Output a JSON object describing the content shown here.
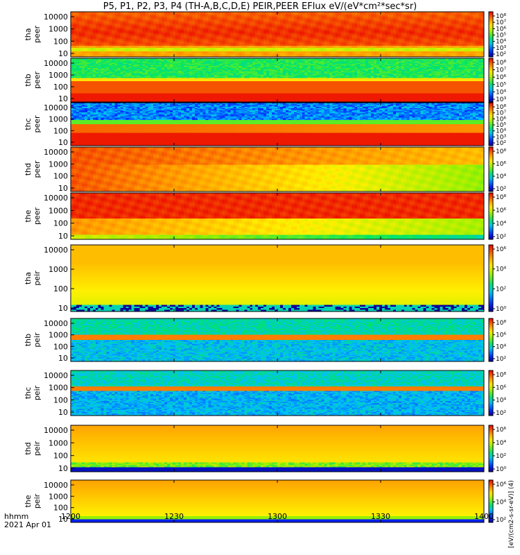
{
  "title": "P5, P1, P2, P3, P4 (TH-A,B,C,D,E) PEIR,PEER EFlux eV/(eV*cm²*sec*sr)",
  "time_axis": {
    "label": "hhmm",
    "date": "2021 Apr 01",
    "ticks": [
      "1200",
      "1230",
      "1300",
      "1330",
      "1400"
    ]
  },
  "colorbar_unit": "[eV/(cm2-s-sr-eV)] (4)",
  "chart_data": {
    "type": "heatmap",
    "title": "P5, P1, P2, P3, P4 (TH-A,B,C,D,E) PEIR,PEER EFlux eV/(eV*cm²*sec*sr)",
    "xlabel": "hhmm",
    "x_range": [
      "2021 Apr 01 12:00",
      "2021 Apr 01 14:00"
    ],
    "x_ticks": [
      "1200",
      "1230",
      "1300",
      "1330",
      "1400"
    ],
    "y_scale": "log",
    "y_ticks": [
      "10",
      "100",
      "1000",
      "10000"
    ],
    "colorscale": "rainbow",
    "panels": [
      {
        "ylabel": [
          "tha",
          "peer"
        ],
        "cb_ticks": [
          "10²",
          "10³",
          "10⁴",
          "10⁵",
          "10⁶",
          "10⁷",
          "10⁸"
        ],
        "cb_range": [
          2,
          8
        ]
      },
      {
        "ylabel": [
          "thb",
          "peer"
        ],
        "cb_ticks": [
          "10³",
          "10⁴",
          "10⁵",
          "10⁶",
          "10⁷",
          "10⁸"
        ],
        "cb_range": [
          3,
          8
        ]
      },
      {
        "ylabel": [
          "thc",
          "peer"
        ],
        "cb_ticks": [
          "10²",
          "10³",
          "10⁴",
          "10⁵",
          "10⁶",
          "10⁷",
          "10⁸"
        ],
        "cb_range": [
          2,
          8
        ]
      },
      {
        "ylabel": [
          "thd",
          "peer"
        ],
        "cb_ticks": [
          "10²",
          "10⁴",
          "10⁶",
          "10⁸"
        ],
        "cb_range": [
          2,
          8
        ]
      },
      {
        "ylabel": [
          "the",
          "peer"
        ],
        "cb_ticks": [
          "10²",
          "10⁴",
          "10⁶",
          "10⁸"
        ],
        "cb_range": [
          2,
          8
        ]
      },
      {
        "ylabel": [
          "tha",
          "peir"
        ],
        "cb_ticks": [
          "10⁰",
          "10²",
          "10⁴",
          "10⁶"
        ],
        "cb_range": [
          0,
          7
        ]
      },
      {
        "ylabel": [
          "thb",
          "peir"
        ],
        "cb_ticks": [
          "10²",
          "10⁴",
          "10⁶",
          "10⁸"
        ],
        "cb_range": [
          1,
          8
        ]
      },
      {
        "ylabel": [
          "thc",
          "peir"
        ],
        "cb_ticks": [
          "10²",
          "10⁴",
          "10⁶",
          "10⁸"
        ],
        "cb_range": [
          1,
          8
        ]
      },
      {
        "ylabel": [
          "thd",
          "peir"
        ],
        "cb_ticks": [
          "10⁰",
          "10²",
          "10⁴",
          "10⁶"
        ],
        "cb_range": [
          0,
          7
        ]
      },
      {
        "ylabel": [
          "the",
          "peir"
        ],
        "cb_ticks": [
          "10²",
          "10⁴",
          "10⁶"
        ],
        "cb_range": [
          1,
          7
        ]
      }
    ]
  }
}
